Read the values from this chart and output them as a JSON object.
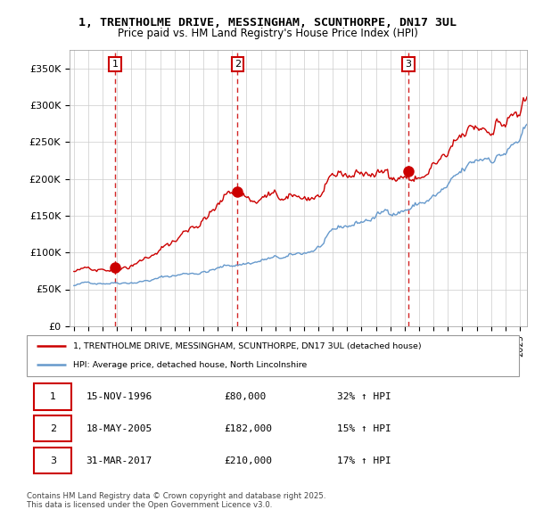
{
  "title": "1, TRENTHOLME DRIVE, MESSINGHAM, SCUNTHORPE, DN17 3UL",
  "subtitle": "Price paid vs. HM Land Registry's House Price Index (HPI)",
  "ylim": [
    0,
    375000
  ],
  "xlim_start": 1994.0,
  "xlim_end": 2025.5,
  "yticks": [
    0,
    50000,
    100000,
    150000,
    200000,
    250000,
    300000,
    350000
  ],
  "ytick_labels": [
    "£0",
    "£50K",
    "£100K",
    "£150K",
    "£200K",
    "£250K",
    "£300K",
    "£350K"
  ],
  "sale1_date": 1996.877,
  "sale1_price": 80000,
  "sale1_label": "1",
  "sale1_text": "15-NOV-1996",
  "sale1_price_text": "£80,000",
  "sale1_hpi_text": "32% ↑ HPI",
  "sale2_date": 2005.38,
  "sale2_price": 182000,
  "sale2_label": "2",
  "sale2_text": "18-MAY-2005",
  "sale2_price_text": "£182,000",
  "sale2_hpi_text": "15% ↑ HPI",
  "sale3_date": 2017.247,
  "sale3_price": 210000,
  "sale3_label": "3",
  "sale3_text": "31-MAR-2017",
  "sale3_price_text": "£210,000",
  "sale3_hpi_text": "17% ↑ HPI",
  "line_color_price": "#cc0000",
  "line_color_hpi": "#6699cc",
  "legend_label_price": "1, TRENTHOLME DRIVE, MESSINGHAM, SCUNTHORPE, DN17 3UL (detached house)",
  "legend_label_hpi": "HPI: Average price, detached house, North Lincolnshire",
  "footer_text": "Contains HM Land Registry data © Crown copyright and database right 2025.\nThis data is licensed under the Open Government Licence v3.0.",
  "background_color": "#ffffff",
  "grid_color": "#cccccc",
  "marker_size": 8
}
